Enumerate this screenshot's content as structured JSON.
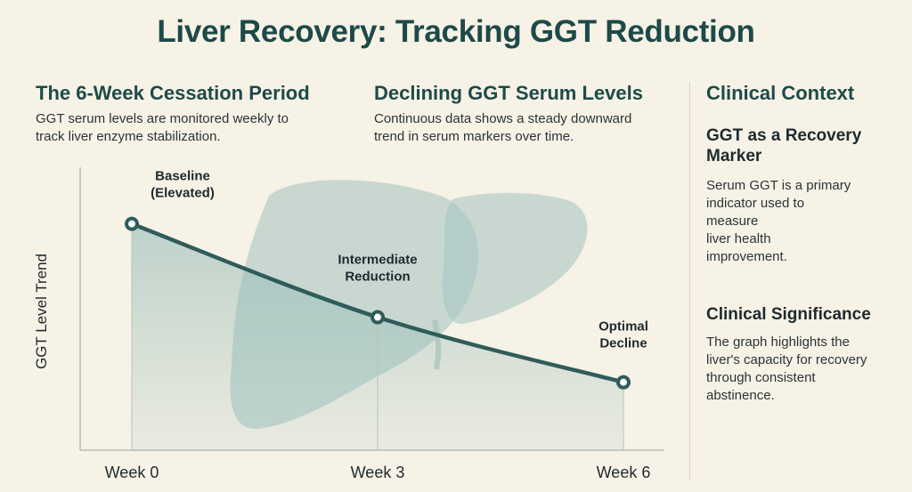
{
  "title": "Liver Recovery: Tracking GGT Reduction",
  "left_section": {
    "heading": "The 6-Week Cessation Period",
    "text_lines": [
      "GGT serum levels are monitored weekly to",
      "track liver enzyme stabilization."
    ]
  },
  "middle_section": {
    "heading": "Declining GGT Serum Levels",
    "text_lines": [
      "Continuous data shows a steady downward",
      "trend in serum markers over time."
    ]
  },
  "context": {
    "heading": "Clinical Context",
    "sub1": {
      "heading_lines": [
        "GGT as a Recovery",
        "Marker"
      ],
      "text_lines": [
        "Serum GGT is a primary",
        "indicator used to",
        "measure",
        "liver health",
        "improvement."
      ]
    },
    "sub2": {
      "heading_lines": [
        "Clinical Significance"
      ],
      "text_lines": [
        "The graph highlights the",
        "liver's capacity for recovery",
        "through consistent",
        "abstinence."
      ]
    }
  },
  "colors": {
    "accent": "#1d4a48",
    "line": "#2f5c5a",
    "fill": "#8fb7b3",
    "liver": "#a9c7c3",
    "background": "#f7f2e6"
  },
  "chart_data": {
    "type": "line",
    "ylabel": "GGT Level Trend",
    "xlabel": "",
    "x_ticks": [
      "Week 0",
      "Week 3",
      "Week 6"
    ],
    "y_ticks_shown": false,
    "ylim": [
      0,
      1
    ],
    "series": [
      {
        "x": [
          0,
          3,
          6
        ],
        "y": [
          0.8,
          0.47,
          0.24
        ]
      }
    ],
    "annotations": [
      {
        "x": 0,
        "lines": [
          "Baseline",
          "(Elevated)"
        ]
      },
      {
        "x": 3,
        "lines": [
          "Intermediate",
          "Reduction"
        ]
      },
      {
        "x": 6,
        "lines": [
          "Optimal",
          "Decline"
        ]
      }
    ]
  }
}
